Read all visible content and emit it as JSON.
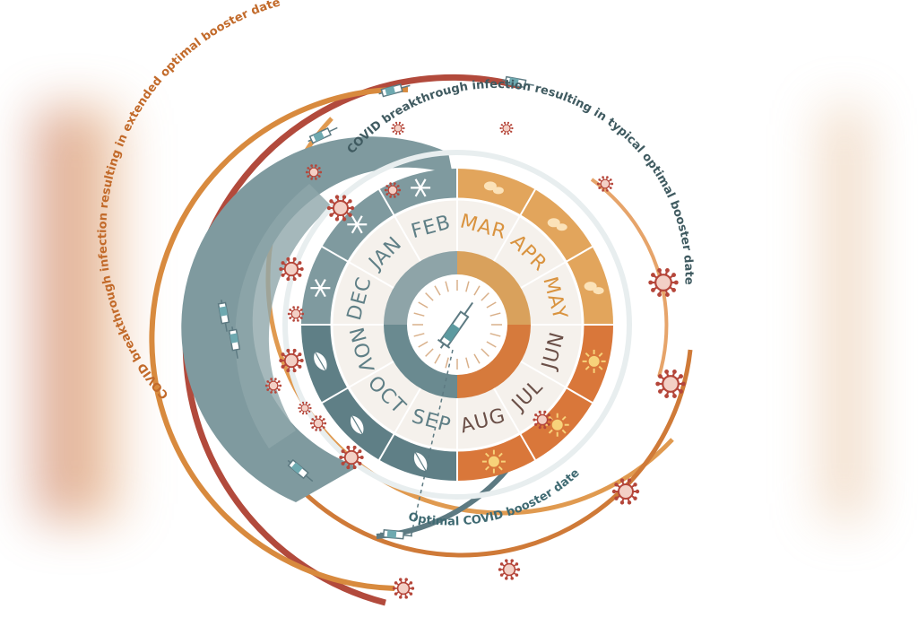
{
  "labels": {
    "extended": "COVID breakthrough infection resulting in extended optimal booster date",
    "typical": "COVID breakthrough infection resulting in typical optimal booster date",
    "optimal": "Optimal COVID booster date"
  },
  "months": [
    "MAR",
    "APR",
    "MAY",
    "JUN",
    "JUL",
    "AUG",
    "SEP",
    "OCT",
    "NOV",
    "DEC",
    "JAN",
    "FEB"
  ],
  "icons": {
    "winter": "snowflake-icon",
    "spring": "sprout-icon",
    "summer": "sun-icon",
    "autumn": "leaf-icon",
    "center": "syringe-icon",
    "virus": "virus-icon"
  },
  "colors": {
    "winter": "#5f7f86",
    "winter_light": "#a9bcbf",
    "spring": "#e0a35a",
    "summer": "#d7783d",
    "extended_arc": "#b24a3c",
    "orange_arc": "#d88a3e",
    "typical_arc": "#5d7a82",
    "virus": "#b5463a"
  }
}
